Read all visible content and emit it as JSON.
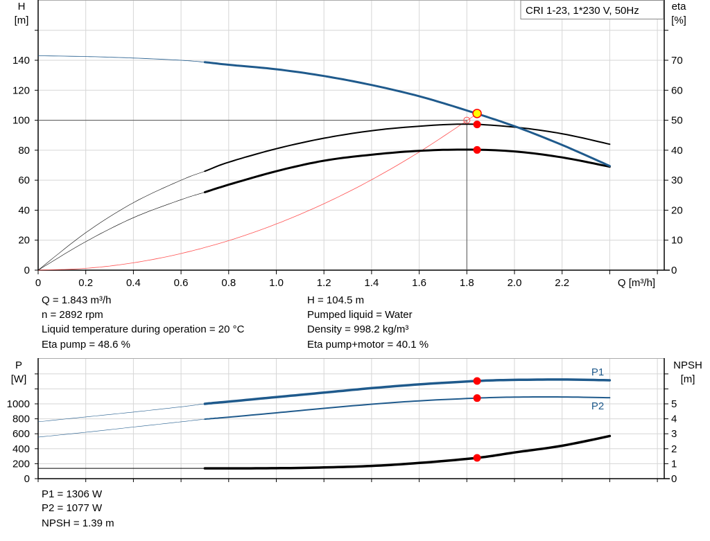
{
  "chart_data": [
    {
      "type": "line",
      "legend_box": "CRI 1-23, 1*230 V, 50Hz",
      "xlabel": "Q [m³/h]",
      "ylabel_left": [
        "H",
        "[m]"
      ],
      "ylabel_right": [
        "eta",
        "[%]"
      ],
      "xlim": [
        0,
        2.6
      ],
      "ylim_left": [
        0,
        160
      ],
      "ylim_right": [
        0,
        80
      ],
      "x_ticks": [
        "0",
        "0.2",
        "0.4",
        "0.6",
        "0.8",
        "1.0",
        "1.2",
        "1.4",
        "1.6",
        "1.8",
        "2.0",
        "2.2"
      ],
      "y_ticks_left": [
        "0",
        "20",
        "40",
        "60",
        "80",
        "100",
        "120",
        "140"
      ],
      "y_ticks_right": [
        "0",
        "10",
        "20",
        "30",
        "40",
        "50",
        "60",
        "70"
      ],
      "grid": true,
      "colors": {
        "head": "#1f5a8c",
        "eta": "#000000",
        "system": "#ff5050",
        "duty_point": "#ffff00",
        "marker": "#ff0000"
      },
      "series": [
        {
          "key": "H",
          "axis": "left",
          "x": [
            0,
            0.2,
            0.4,
            0.6,
            0.7,
            0.8,
            1.0,
            1.2,
            1.4,
            1.6,
            1.8,
            2.0,
            2.2,
            2.4
          ],
          "y": [
            143,
            142.5,
            141.5,
            140,
            138.7,
            137,
            134,
            129.5,
            123.5,
            116,
            106.5,
            96,
            83.5,
            69.5
          ]
        },
        {
          "key": "eta_pump",
          "axis": "right",
          "x": [
            0,
            0.2,
            0.4,
            0.6,
            0.7,
            0.8,
            1.0,
            1.2,
            1.4,
            1.6,
            1.8,
            2.0,
            2.2,
            2.4
          ],
          "y": [
            0,
            12.5,
            22.5,
            30,
            33,
            36,
            40.5,
            44,
            46.5,
            48,
            48.7,
            47.7,
            45.5,
            42
          ]
        },
        {
          "key": "eta_pump_motor",
          "axis": "right",
          "x": [
            0,
            0.2,
            0.4,
            0.6,
            0.7,
            0.8,
            1.0,
            1.2,
            1.4,
            1.6,
            1.8,
            2.0,
            2.2,
            2.4
          ],
          "y": [
            0,
            9.5,
            17.5,
            23.5,
            26,
            28.5,
            33,
            36.5,
            38.5,
            39.8,
            40.2,
            39.6,
            37.6,
            34.5
          ]
        },
        {
          "key": "system_curve",
          "axis": "left",
          "x": [
            0,
            0.2,
            0.4,
            0.6,
            0.8,
            1.0,
            1.2,
            1.4,
            1.6,
            1.8,
            1.843
          ],
          "y": [
            0,
            1.2,
            4.9,
            11.1,
            19.7,
            30.8,
            44.3,
            60.3,
            78.8,
            99.7,
            104.5
          ]
        }
      ],
      "duty_point": {
        "Q": 1.843,
        "H": 104.5,
        "eta_pump": 48.6,
        "eta_pump_motor": 40.1
      },
      "reference_point": {
        "Q": 1.8,
        "H": 100
      }
    },
    {
      "type": "line",
      "ylabel_left": [
        "P",
        "[W]"
      ],
      "ylabel_right": [
        "NPSH",
        "[m]"
      ],
      "xlim": [
        0,
        2.6
      ],
      "ylim_left": [
        0,
        1400
      ],
      "ylim_right": [
        0,
        7
      ],
      "y_ticks_left": [
        "0",
        "200",
        "400",
        "600",
        "800",
        "1000"
      ],
      "y_ticks_right": [
        "0",
        "1",
        "2",
        "3",
        "4",
        "5"
      ],
      "grid": true,
      "series": [
        {
          "key": "P1",
          "name": "P1",
          "axis": "left",
          "x": [
            0,
            0.2,
            0.4,
            0.6,
            0.7,
            0.8,
            1.0,
            1.2,
            1.4,
            1.6,
            1.843,
            2.0,
            2.2,
            2.4
          ],
          "y": [
            760,
            825,
            890,
            960,
            1000,
            1030,
            1090,
            1150,
            1210,
            1260,
            1306,
            1320,
            1325,
            1315
          ]
        },
        {
          "key": "P2",
          "name": "P2",
          "axis": "left",
          "x": [
            0,
            0.2,
            0.4,
            0.6,
            0.7,
            0.8,
            1.0,
            1.2,
            1.4,
            1.6,
            1.843,
            2.0,
            2.2,
            2.4
          ],
          "y": [
            555,
            620,
            690,
            760,
            795,
            822,
            880,
            940,
            995,
            1040,
            1077,
            1090,
            1092,
            1082
          ]
        },
        {
          "key": "NPSH",
          "axis": "right",
          "x": [
            0,
            0.7,
            0.8,
            1.0,
            1.2,
            1.4,
            1.6,
            1.843,
            2.0,
            2.2,
            2.4
          ],
          "y": [
            0.69,
            0.69,
            0.69,
            0.7,
            0.75,
            0.85,
            1.05,
            1.39,
            1.75,
            2.2,
            2.85
          ]
        }
      ],
      "duty_point": {
        "Q": 1.843,
        "P1": 1306,
        "P2": 1077,
        "NPSH": 1.39
      }
    }
  ],
  "info_top": {
    "left": [
      "Q = 1.843 m³/h",
      "n = 2892 rpm",
      "Liquid temperature during operation = 20 °C",
      "Eta pump = 48.6 %"
    ],
    "right": [
      "H = 104.5 m",
      "Pumped liquid = Water",
      "Density = 998.2 kg/m³",
      "Eta pump+motor = 40.1 %"
    ]
  },
  "info_bottom": [
    "P1 = 1306 W",
    "P2 = 1077 W",
    "NPSH = 1.39 m"
  ]
}
